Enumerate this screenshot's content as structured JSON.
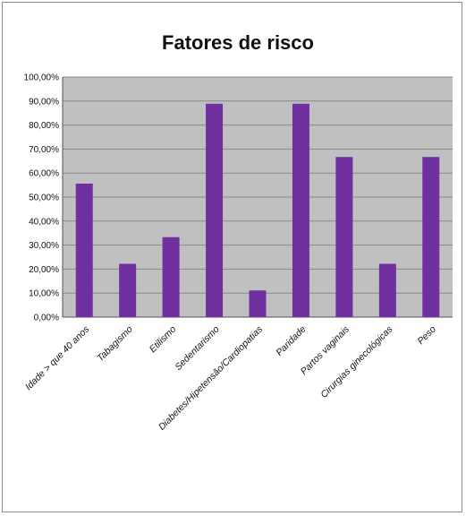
{
  "chart_data": {
    "type": "bar",
    "title": "Fatores de risco",
    "categories": [
      "Idade > que 40 anos",
      "Tabagismo",
      "Etilismo",
      "Sedentarismo",
      "Diabetes/Hipetensão/Cardiopatias",
      "Paridade",
      "Partos vaginais",
      "Cirurgias ginecológicas",
      "Peso"
    ],
    "values": [
      55.6,
      22.2,
      33.3,
      88.9,
      11.1,
      88.9,
      66.7,
      22.2,
      66.7
    ],
    "y_ticks": [
      "0,00%",
      "10,00%",
      "20,00%",
      "30,00%",
      "40,00%",
      "50,00%",
      "60,00%",
      "70,00%",
      "80,00%",
      "90,00%",
      "100,00%"
    ],
    "ylim": [
      0,
      100
    ],
    "grid": true,
    "legend": "none",
    "colors": {
      "bar": "#7030a0",
      "plot_background": "#c0c0c0",
      "gridline": "#8a8a8a"
    }
  }
}
